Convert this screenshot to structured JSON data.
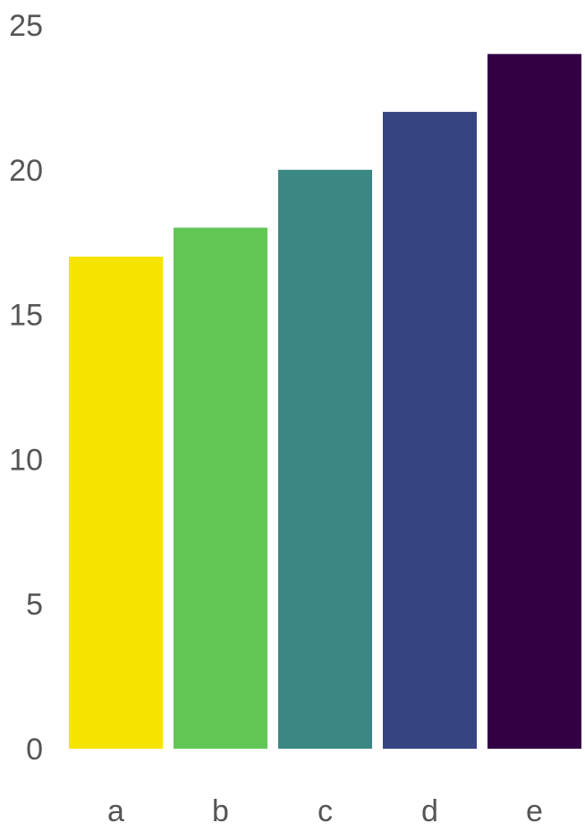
{
  "chart_data": {
    "type": "bar",
    "categories": [
      "a",
      "b",
      "c",
      "d",
      "e"
    ],
    "values": [
      17,
      18,
      20,
      22,
      24
    ],
    "colors": [
      "#f5e400",
      "#62c655",
      "#3a8783",
      "#374482",
      "#340044"
    ],
    "title": "",
    "xlabel": "",
    "ylabel": "",
    "ylim": [
      0,
      25
    ],
    "yticks": [
      0,
      5,
      10,
      15,
      20,
      25
    ],
    "grid": false,
    "legend": "none"
  }
}
